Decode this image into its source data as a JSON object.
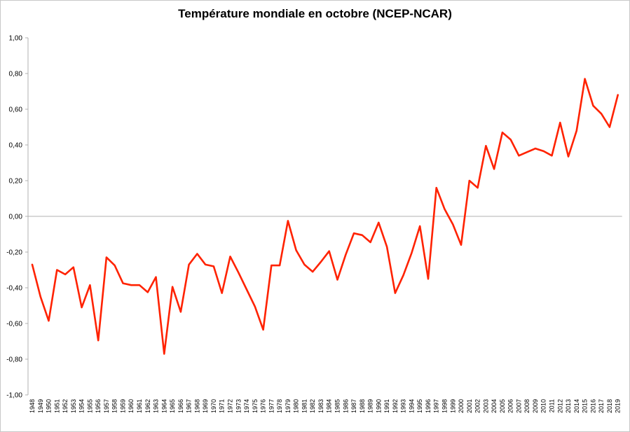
{
  "chart_data": {
    "type": "line",
    "title": "Température mondiale en octobre (NCEP-NCAR)",
    "xlabel": "",
    "ylabel": "",
    "ylim": [
      -1.0,
      1.0
    ],
    "y_ticks": [
      "1,00",
      "0,80",
      "0,60",
      "0,40",
      "0,20",
      "0,00",
      "-0,20",
      "-0,40",
      "-0,60",
      "-0,80",
      "-1,00"
    ],
    "y_tick_values": [
      1.0,
      0.8,
      0.6,
      0.4,
      0.2,
      0.0,
      -0.2,
      -0.4,
      -0.6,
      -0.8,
      -1.0
    ],
    "grid": false,
    "zero_line": true,
    "line_color": "#ff2200",
    "axis_color": "#b0b0b0",
    "x": [
      1948,
      1949,
      1950,
      1951,
      1952,
      1953,
      1954,
      1955,
      1956,
      1957,
      1958,
      1959,
      1960,
      1961,
      1962,
      1963,
      1964,
      1965,
      1966,
      1967,
      1968,
      1969,
      1970,
      1971,
      1972,
      1973,
      1974,
      1975,
      1976,
      1977,
      1978,
      1979,
      1980,
      1981,
      1982,
      1983,
      1984,
      1985,
      1986,
      1987,
      1988,
      1989,
      1990,
      1991,
      1992,
      1993,
      1994,
      1995,
      1996,
      1997,
      1998,
      1999,
      2000,
      2001,
      2002,
      2003,
      2004,
      2005,
      2006,
      2007,
      2008,
      2009,
      2010,
      2011,
      2012,
      2013,
      2014,
      2015,
      2016,
      2017,
      2018,
      2019
    ],
    "values": [
      -0.27,
      -0.45,
      -0.585,
      -0.3,
      -0.325,
      -0.285,
      -0.51,
      -0.385,
      -0.695,
      -0.23,
      -0.275,
      -0.375,
      -0.385,
      -0.385,
      -0.425,
      -0.34,
      -0.77,
      -0.395,
      -0.535,
      -0.27,
      -0.21,
      -0.27,
      -0.28,
      -0.43,
      -0.225,
      -0.315,
      -0.41,
      -0.505,
      -0.635,
      -0.275,
      -0.275,
      -0.025,
      -0.19,
      -0.27,
      -0.31,
      -0.255,
      -0.195,
      -0.355,
      -0.215,
      -0.095,
      -0.105,
      -0.145,
      -0.035,
      -0.17,
      -0.43,
      -0.33,
      -0.205,
      -0.055,
      -0.35,
      0.16,
      0.04,
      -0.045,
      -0.16,
      0.2,
      0.16,
      0.395,
      0.265,
      0.47,
      0.43,
      0.34,
      0.36,
      0.38,
      0.365,
      0.34,
      0.525,
      0.335,
      0.48,
      0.77,
      0.62,
      0.575,
      0.5,
      0.68
    ]
  }
}
